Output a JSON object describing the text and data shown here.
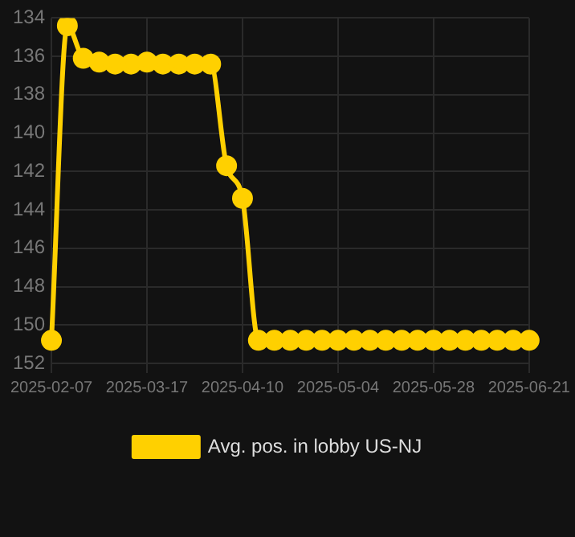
{
  "chart_data": {
    "type": "line",
    "categories": [
      "2025-02-07",
      null,
      null,
      null,
      null,
      null,
      "2025-03-17",
      null,
      null,
      null,
      null,
      null,
      "2025-04-10",
      null,
      null,
      null,
      null,
      null,
      "2025-05-04",
      null,
      null,
      null,
      null,
      null,
      "2025-05-28",
      null,
      null,
      null,
      null,
      null,
      "2025-06-21"
    ],
    "series": [
      {
        "name": "Avg. pos. in lobby US-NJ",
        "color": "#ffd000",
        "values": [
          150.8,
          134.4,
          136.1,
          136.3,
          136.4,
          136.4,
          136.3,
          136.4,
          136.4,
          136.4,
          136.4,
          141.7,
          143.4,
          150.8,
          150.8,
          150.8,
          150.8,
          150.8,
          150.8,
          150.8,
          150.8,
          150.8,
          150.8,
          150.8,
          150.8,
          150.8,
          150.8,
          150.8,
          150.8,
          150.8,
          150.8
        ]
      }
    ],
    "ylim": [
      152,
      134
    ],
    "yticks": [
      134,
      136,
      138,
      140,
      142,
      144,
      146,
      148,
      150,
      152
    ],
    "grid": true,
    "legend": "bottom",
    "marker": "circle",
    "line_style": "solid"
  }
}
